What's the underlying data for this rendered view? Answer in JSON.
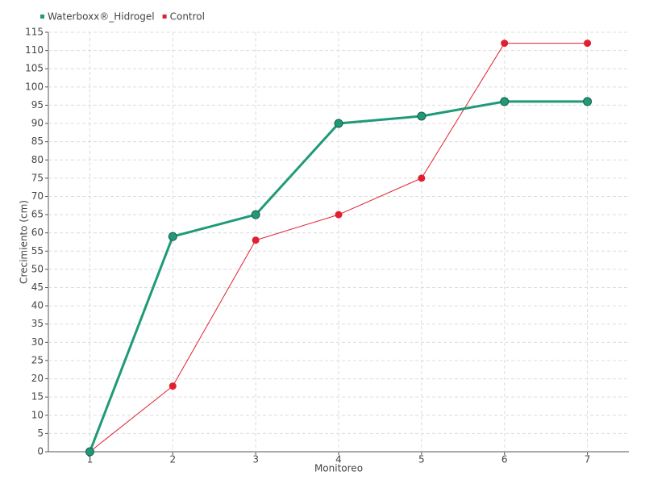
{
  "chart_data": {
    "type": "line",
    "x_label": "Monitoreo",
    "y_label": "Crecimiento (cm)",
    "categories": [
      "1",
      "2",
      "3",
      "4",
      "5",
      "6",
      "7"
    ],
    "series": [
      {
        "name": "Waterboxx®_Hidrogel",
        "color": "#1f9a78",
        "values": [
          0,
          59,
          65,
          90,
          92,
          96,
          96
        ]
      },
      {
        "name": "Control",
        "color": "#e02030",
        "values": [
          0,
          18,
          58,
          65,
          75,
          112,
          112
        ]
      }
    ],
    "ylim": [
      0,
      115
    ],
    "yticks": [
      0,
      5,
      10,
      15,
      20,
      25,
      30,
      35,
      40,
      45,
      50,
      55,
      60,
      65,
      70,
      75,
      80,
      85,
      90,
      95,
      100,
      105,
      110,
      115
    ],
    "grid": true,
    "legend": "top-left"
  }
}
